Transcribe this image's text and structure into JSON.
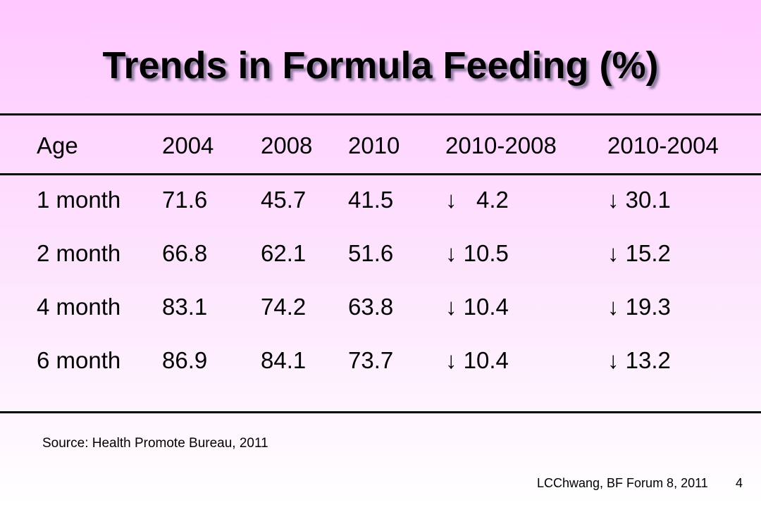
{
  "slide": {
    "title": "Trends in Formula Feeding (%)",
    "source": "Source: Health Promote Bureau, 2011",
    "footer": "LCChwang, BF Forum 8, 2011",
    "page_number": "4"
  },
  "table": {
    "headers": [
      "Age",
      "2004",
      "2008",
      "2010",
      "2010-2008",
      "2010-2004"
    ],
    "rows": [
      [
        "1 month",
        "71.6",
        "45.7",
        "41.5",
        "↓   4.2",
        "↓ 30.1"
      ],
      [
        "2 month",
        "66.8",
        "62.1",
        "51.6",
        "↓ 10.5",
        "↓ 15.2"
      ],
      [
        "4 month",
        "83.1",
        "74.2",
        "63.8",
        "↓ 10.4",
        "↓ 19.3"
      ],
      [
        "6 month",
        "86.9",
        "84.1",
        "73.7",
        "↓ 10.4",
        "↓ 13.2"
      ]
    ]
  }
}
